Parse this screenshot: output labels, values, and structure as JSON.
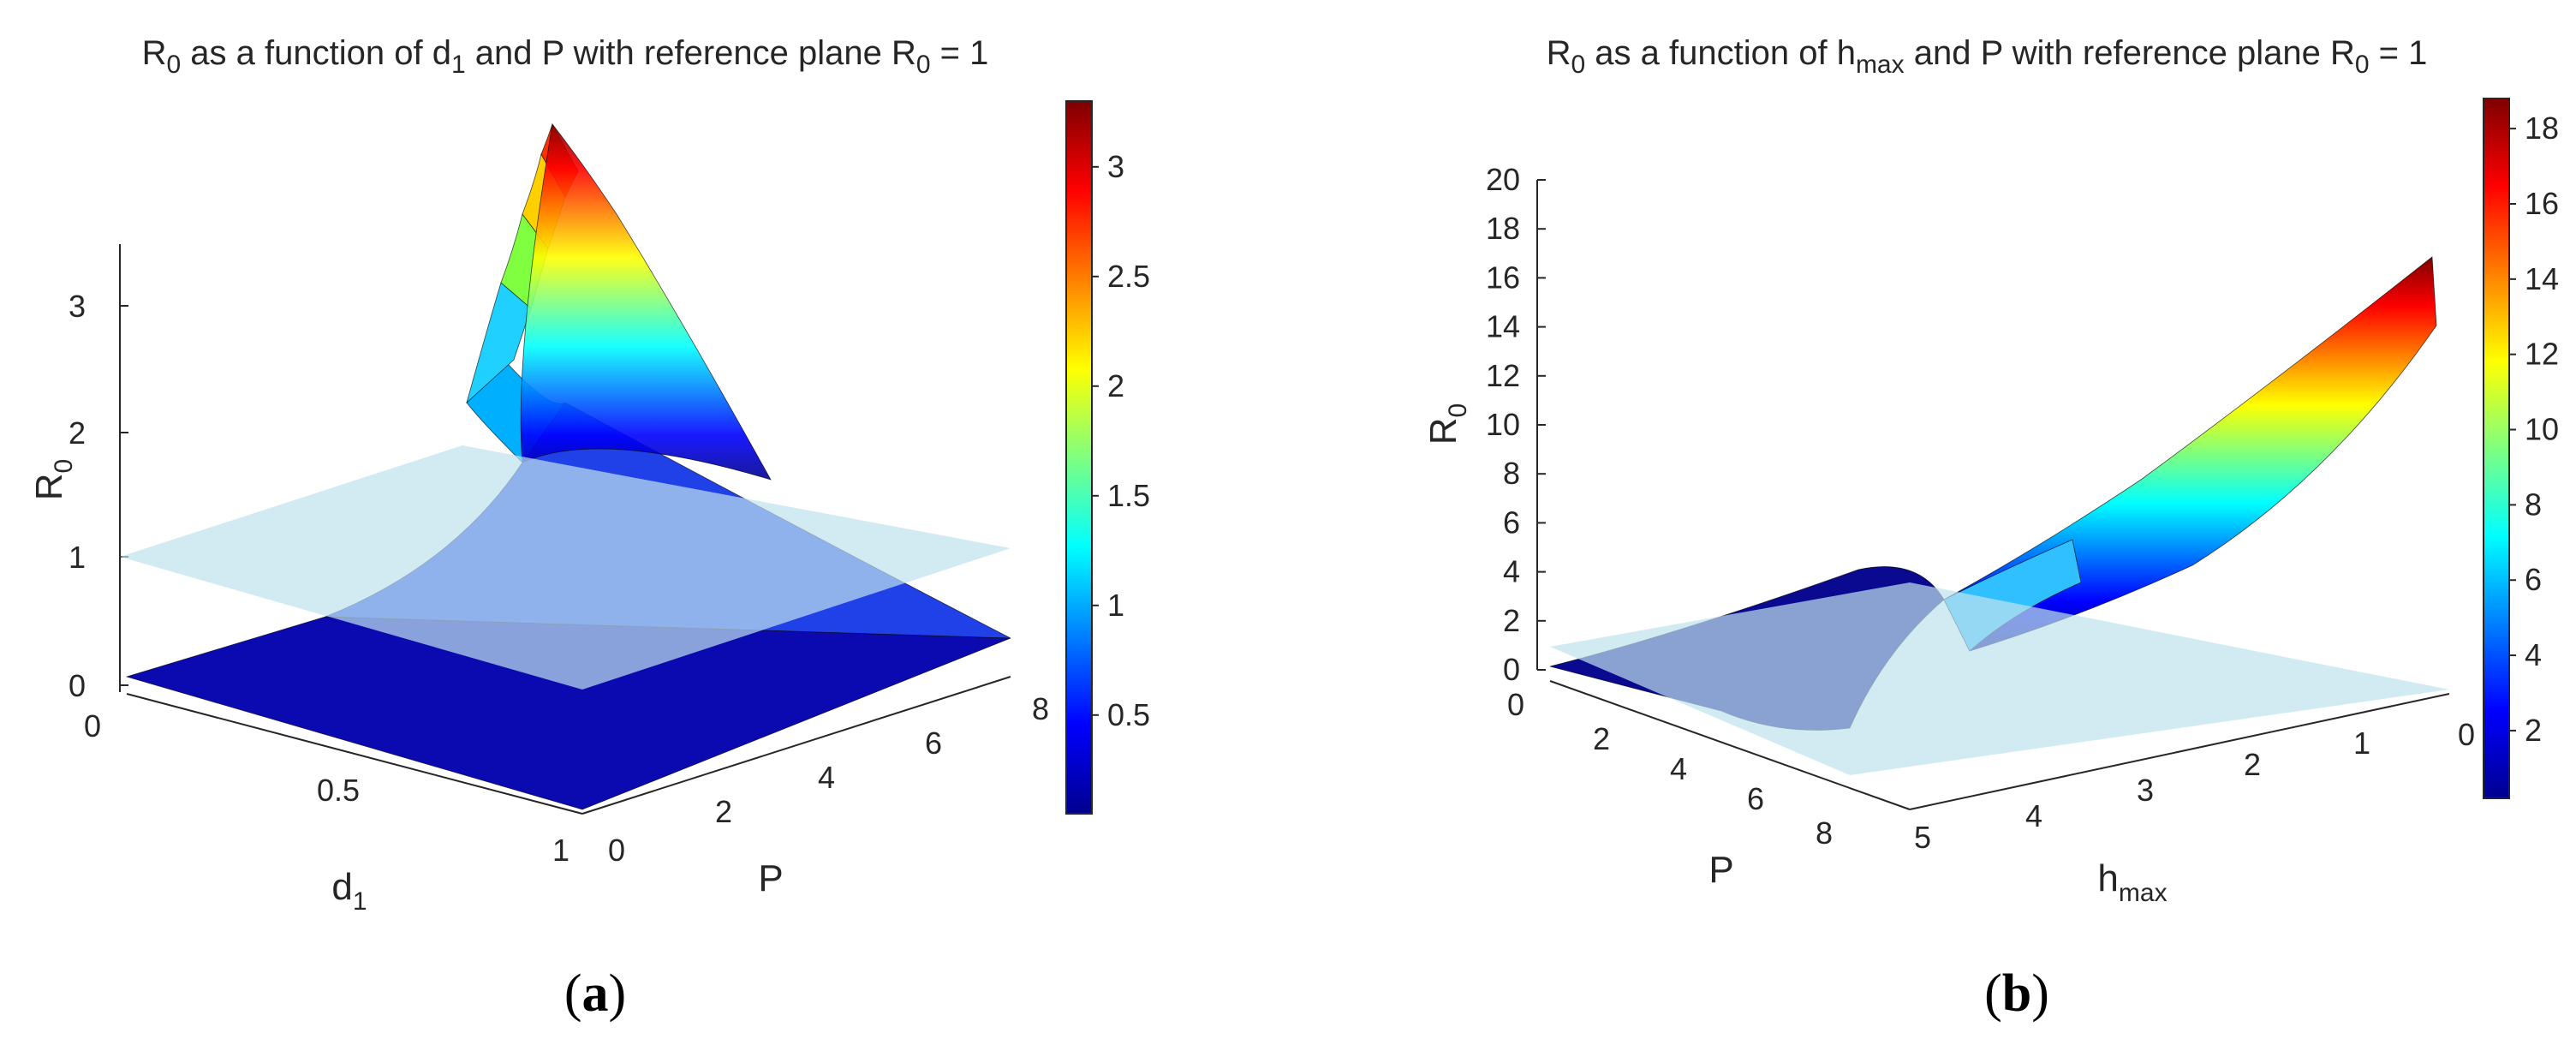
{
  "chart_data": [
    {
      "id": "a",
      "type": "surface",
      "caption": "(a)",
      "title": {
        "parts": [
          {
            "t": "R",
            "sub": false
          },
          {
            "t": "0",
            "sub": true
          },
          {
            "t": " as a function of d",
            "sub": false
          },
          {
            "t": "1",
            "sub": true
          },
          {
            "t": " and P with reference plane R",
            "sub": false
          },
          {
            "t": "0",
            "sub": true
          },
          {
            "t": " = 1",
            "sub": false
          }
        ]
      },
      "xlabel": {
        "base": "d",
        "sub": "1"
      },
      "ylabel": {
        "base": "P",
        "sub": ""
      },
      "zlabel": {
        "base": "R",
        "sub": "0"
      },
      "x_range": [
        0,
        1
      ],
      "y_range": [
        0,
        8
      ],
      "z_range": [
        0,
        3.4
      ],
      "x_ticks": [
        "0",
        "0.5",
        "1"
      ],
      "y_ticks": [
        "0",
        "2",
        "4",
        "6",
        "8"
      ],
      "z_ticks": [
        "0",
        "1",
        "2",
        "3"
      ],
      "reference_plane": 1,
      "surface_samples": {
        "d1": [
          0,
          0.5,
          1,
          0,
          0,
          0.5
        ],
        "P": [
          0,
          0,
          0,
          8,
          4,
          8
        ],
        "R0": [
          0,
          0,
          0,
          3.3,
          0.8,
          0.35
        ]
      },
      "colorbar": {
        "ticks": [
          "0.5",
          "1",
          "1.5",
          "2",
          "2.5",
          "3"
        ],
        "min": 0.05,
        "max": 3.3
      },
      "colormap": "jet",
      "grid": false
    },
    {
      "id": "b",
      "type": "surface",
      "caption": "(b)",
      "title": {
        "parts": [
          {
            "t": "R",
            "sub": false
          },
          {
            "t": "0",
            "sub": true
          },
          {
            "t": " as a function of h",
            "sub": false
          },
          {
            "t": "max",
            "sub": true
          },
          {
            "t": " and P with reference plane R",
            "sub": false
          },
          {
            "t": "0",
            "sub": true
          },
          {
            "t": " = 1",
            "sub": false
          }
        ]
      },
      "xlabel": {
        "base": "h",
        "sub": "max"
      },
      "ylabel": {
        "base": "P",
        "sub": ""
      },
      "zlabel": {
        "base": "R",
        "sub": "0"
      },
      "x_range": [
        0,
        5
      ],
      "y_range": [
        0,
        8
      ],
      "z_range": [
        0,
        20
      ],
      "x_ticks": [
        "5",
        "4",
        "3",
        "2",
        "1",
        "0"
      ],
      "y_ticks": [
        "0",
        "2",
        "4",
        "6",
        "8"
      ],
      "z_ticks": [
        "0",
        "2",
        "4",
        "6",
        "8",
        "10",
        "12",
        "14",
        "16",
        "18",
        "20"
      ],
      "reference_plane": 1,
      "surface_samples": {
        "hmax": [
          5,
          5,
          3,
          0.2,
          0.2
        ],
        "P": [
          0,
          8,
          8,
          0,
          8
        ],
        "R0": [
          0,
          0,
          1,
          4,
          17
        ]
      },
      "colorbar": {
        "ticks": [
          "2",
          "4",
          "6",
          "8",
          "10",
          "12",
          "14",
          "16",
          "18"
        ],
        "min": 0.2,
        "max": 18.8
      },
      "colormap": "jet",
      "grid": false
    }
  ]
}
